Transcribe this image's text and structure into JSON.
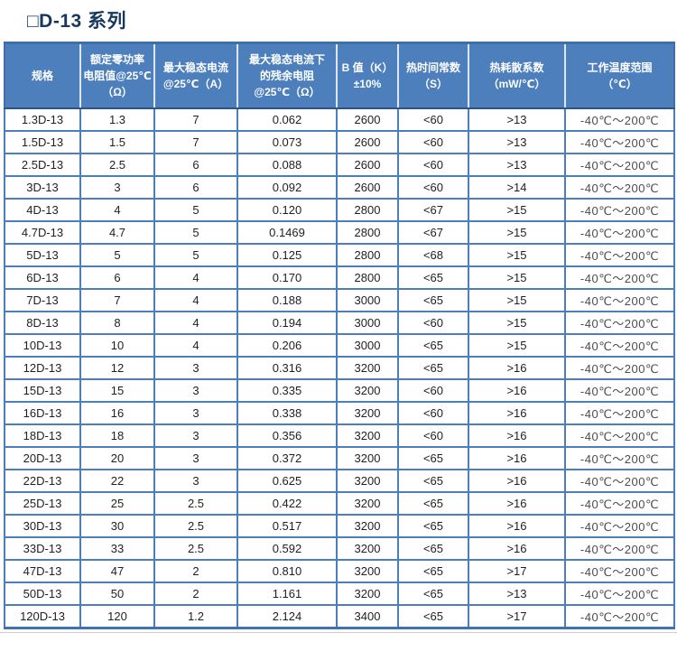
{
  "page": {
    "title": "□D-13 系列"
  },
  "colors": {
    "title_text": "#17375E",
    "header_bg": "#4d7fbd",
    "table_border": "#4a7ebe",
    "header_separator": "#dde8f4",
    "body_text": "#1f1f1f"
  },
  "table": {
    "column_keys": [
      "spec",
      "r25",
      "imax",
      "rres",
      "bvalue",
      "tc",
      "dissipation",
      "temp-range"
    ],
    "columns": [
      {
        "label": "规格"
      },
      {
        "label": "额定零功率\n电阻值@25℃\n（Ω）"
      },
      {
        "label": "最大稳态电流\n@25℃（A）"
      },
      {
        "label": "最大稳态电流下\n的残余电阻\n@25℃（Ω）"
      },
      {
        "label": "B 值（K）\n±10%"
      },
      {
        "label": "热时间常数\n（S）"
      },
      {
        "label": "热耗散系数\n（mW/℃）"
      },
      {
        "label": "工作温度范围\n（℃）"
      }
    ],
    "rows": [
      [
        "1.3D-13",
        "1.3",
        "7",
        "0.062",
        "2600",
        "<60",
        ">13",
        "-40℃～200℃"
      ],
      [
        "1.5D-13",
        "1.5",
        "7",
        "0.073",
        "2600",
        "<60",
        ">13",
        "-40℃～200℃"
      ],
      [
        "2.5D-13",
        "2.5",
        "6",
        "0.088",
        "2600",
        "<60",
        ">13",
        "-40℃～200℃"
      ],
      [
        "3D-13",
        "3",
        "6",
        "0.092",
        "2600",
        "<60",
        ">14",
        "-40℃～200℃"
      ],
      [
        "4D-13",
        "4",
        "5",
        "0.120",
        "2800",
        "<67",
        ">15",
        "-40℃～200℃"
      ],
      [
        "4.7D-13",
        "4.7",
        "5",
        "0.1469",
        "2800",
        "<67",
        ">15",
        "-40℃～200℃"
      ],
      [
        "5D-13",
        "5",
        "5",
        "0.125",
        "2800",
        "<68",
        ">15",
        "-40℃～200℃"
      ],
      [
        "6D-13",
        "6",
        "4",
        "0.170",
        "2800",
        "<65",
        ">15",
        "-40℃～200℃"
      ],
      [
        "7D-13",
        "7",
        "4",
        "0.188",
        "3000",
        "<65",
        ">15",
        "-40℃～200℃"
      ],
      [
        "8D-13",
        "8",
        "4",
        "0.194",
        "3000",
        "<60",
        ">15",
        "-40℃～200℃"
      ],
      [
        "10D-13",
        "10",
        "4",
        "0.206",
        "3000",
        "<65",
        ">15",
        "-40℃～200℃"
      ],
      [
        "12D-13",
        "12",
        "3",
        "0.316",
        "3200",
        "<65",
        ">16",
        "-40℃～200℃"
      ],
      [
        "15D-13",
        "15",
        "3",
        "0.335",
        "3200",
        "<60",
        ">16",
        "-40℃～200℃"
      ],
      [
        "16D-13",
        "16",
        "3",
        "0.338",
        "3200",
        "<60",
        ">16",
        "-40℃～200℃"
      ],
      [
        "18D-13",
        "18",
        "3",
        "0.356",
        "3200",
        "<60",
        ">16",
        "-40℃～200℃"
      ],
      [
        "20D-13",
        "20",
        "3",
        "0.372",
        "3200",
        "<65",
        ">16",
        "-40℃～200℃"
      ],
      [
        "22D-13",
        "22",
        "3",
        "0.625",
        "3200",
        "<65",
        ">16",
        "-40℃～200℃"
      ],
      [
        "25D-13",
        "25",
        "2.5",
        "0.422",
        "3200",
        "<65",
        ">16",
        "-40℃～200℃"
      ],
      [
        "30D-13",
        "30",
        "2.5",
        "0.517",
        "3200",
        "<65",
        ">16",
        "-40℃～200℃"
      ],
      [
        "33D-13",
        "33",
        "2.5",
        "0.592",
        "3200",
        "<65",
        ">16",
        "-40℃～200℃"
      ],
      [
        "47D-13",
        "47",
        "2",
        "0.810",
        "3200",
        "<65",
        ">17",
        "-40℃～200℃"
      ],
      [
        "50D-13",
        "50",
        "2",
        "1.161",
        "3200",
        "<65",
        ">13",
        "-40℃～200℃"
      ],
      [
        "120D-13",
        "120",
        "1.2",
        "2.124",
        "3400",
        "<65",
        ">17",
        "-40℃～200℃"
      ]
    ]
  }
}
